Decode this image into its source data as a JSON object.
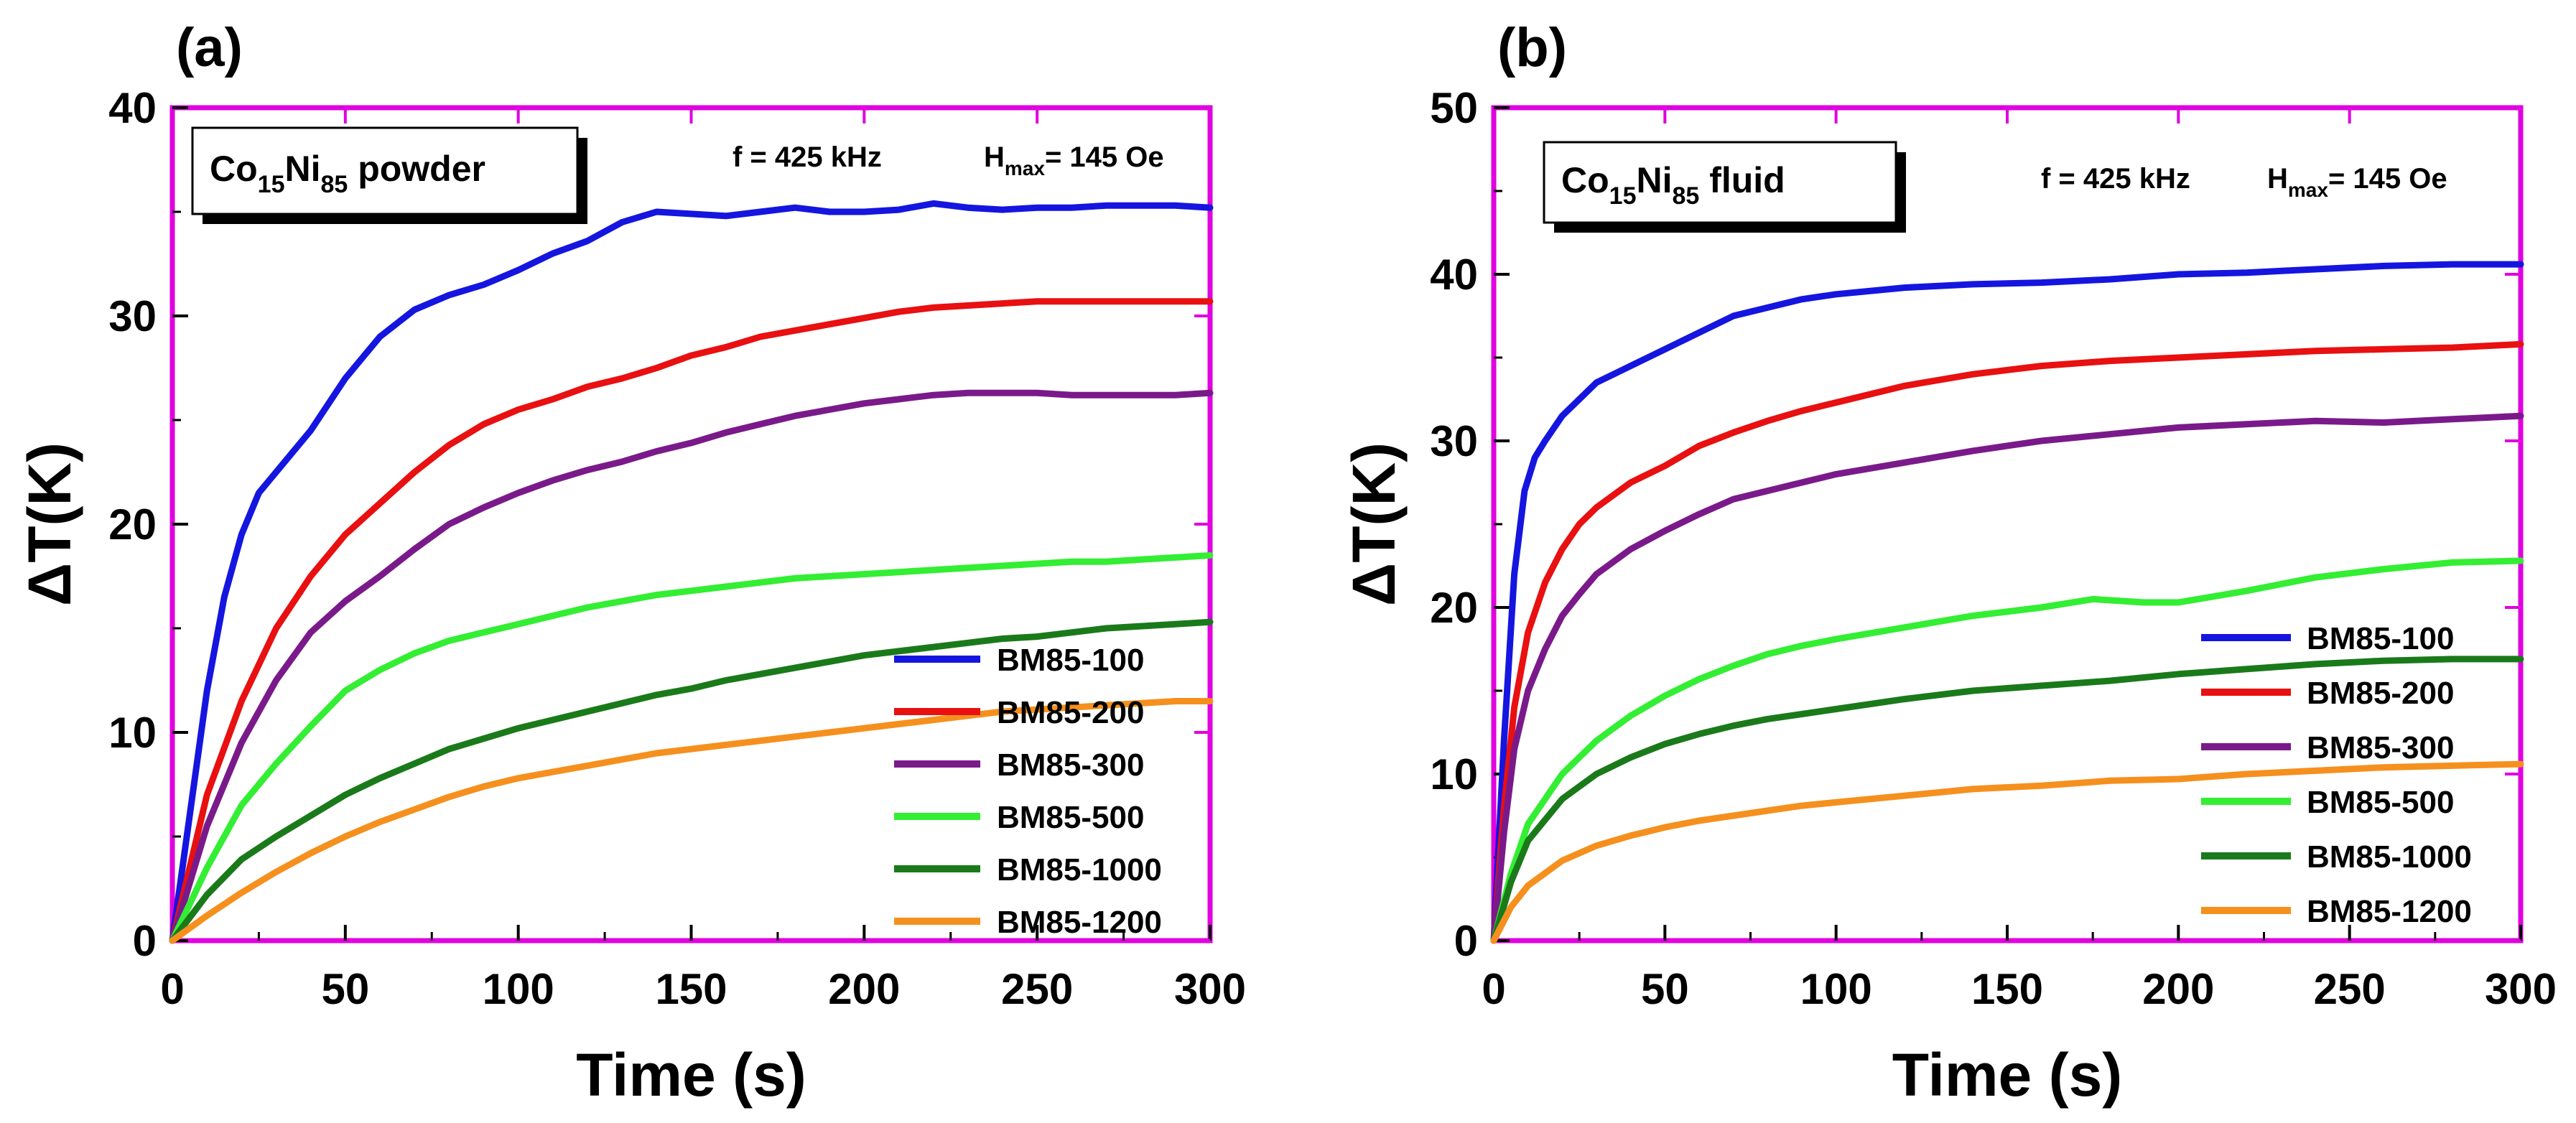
{
  "chart_data": [
    {
      "type": "line",
      "panel_label": "(a)",
      "sample": {
        "prefix": "Co",
        "sub1": "15",
        "mid": "Ni",
        "sub2": "85",
        "suffix": " powder"
      },
      "conditions": {
        "f_text": "f = 425 kHz",
        "h_main": "H",
        "h_sub": "max",
        "h_value": "= 145 Oe"
      },
      "xlabel": "Time (s)",
      "ylabel": "ΔT(K)",
      "xlim": [
        0,
        300
      ],
      "ylim": [
        0,
        40
      ],
      "xticks": [
        "0",
        "50",
        "100",
        "150",
        "200",
        "250",
        "300"
      ],
      "yticks": [
        "0",
        "10",
        "20",
        "30",
        "40"
      ],
      "legend_position": "lower-right",
      "series": [
        {
          "name": "BM85-100",
          "color": "#1515e0",
          "x": [
            0,
            5,
            10,
            15,
            20,
            25,
            30,
            40,
            50,
            60,
            70,
            80,
            90,
            100,
            110,
            120,
            130,
            140,
            150,
            160,
            170,
            180,
            190,
            200,
            210,
            220,
            230,
            240,
            250,
            260,
            270,
            280,
            290,
            300
          ],
          "y": [
            0,
            6,
            12,
            16.5,
            19.5,
            21.5,
            22.5,
            24.5,
            27,
            29,
            30.3,
            31,
            31.5,
            32.2,
            33,
            33.6,
            34.5,
            35,
            34.9,
            34.8,
            35,
            35.2,
            35.0,
            35.0,
            35.1,
            35.4,
            35.2,
            35.1,
            35.2,
            35.2,
            35.3,
            35.3,
            35.3,
            35.2
          ]
        },
        {
          "name": "BM85-200",
          "color": "#e81010",
          "x": [
            0,
            10,
            20,
            30,
            40,
            50,
            60,
            70,
            80,
            90,
            100,
            110,
            120,
            130,
            140,
            150,
            160,
            170,
            180,
            190,
            200,
            210,
            220,
            230,
            240,
            250,
            260,
            270,
            280,
            290,
            300
          ],
          "y": [
            0,
            7,
            11.5,
            15,
            17.5,
            19.5,
            21,
            22.5,
            23.8,
            24.8,
            25.5,
            26,
            26.6,
            27,
            27.5,
            28.1,
            28.5,
            29,
            29.3,
            29.6,
            29.9,
            30.2,
            30.4,
            30.5,
            30.6,
            30.7,
            30.7,
            30.7,
            30.7,
            30.7,
            30.7
          ]
        },
        {
          "name": "BM85-300",
          "color": "#7a1a8a",
          "x": [
            0,
            10,
            20,
            30,
            40,
            50,
            60,
            70,
            80,
            90,
            100,
            110,
            120,
            130,
            140,
            150,
            160,
            170,
            180,
            190,
            200,
            210,
            220,
            230,
            240,
            250,
            260,
            270,
            280,
            290,
            300
          ],
          "y": [
            0,
            5.5,
            9.5,
            12.5,
            14.8,
            16.3,
            17.5,
            18.8,
            20,
            20.8,
            21.5,
            22.1,
            22.6,
            23,
            23.5,
            23.9,
            24.4,
            24.8,
            25.2,
            25.5,
            25.8,
            26,
            26.2,
            26.3,
            26.3,
            26.3,
            26.2,
            26.2,
            26.2,
            26.2,
            26.3
          ]
        },
        {
          "name": "BM85-500",
          "color": "#33ee33",
          "x": [
            0,
            10,
            20,
            30,
            40,
            50,
            60,
            70,
            80,
            90,
            100,
            110,
            120,
            130,
            140,
            150,
            160,
            170,
            180,
            190,
            200,
            210,
            220,
            230,
            240,
            250,
            260,
            270,
            280,
            290,
            300
          ],
          "y": [
            0,
            3.5,
            6.5,
            8.5,
            10.3,
            12,
            13,
            13.8,
            14.4,
            14.8,
            15.2,
            15.6,
            16,
            16.3,
            16.6,
            16.8,
            17,
            17.2,
            17.4,
            17.5,
            17.6,
            17.7,
            17.8,
            17.9,
            18,
            18.1,
            18.2,
            18.2,
            18.3,
            18.4,
            18.5
          ]
        },
        {
          "name": "BM85-1000",
          "color": "#1a7a1a",
          "x": [
            0,
            10,
            20,
            30,
            40,
            50,
            60,
            70,
            80,
            90,
            100,
            110,
            120,
            130,
            140,
            150,
            160,
            170,
            180,
            190,
            200,
            210,
            220,
            230,
            240,
            250,
            260,
            270,
            280,
            290,
            300
          ],
          "y": [
            0,
            2.2,
            3.9,
            5,
            6,
            7,
            7.8,
            8.5,
            9.2,
            9.7,
            10.2,
            10.6,
            11,
            11.4,
            11.8,
            12.1,
            12.5,
            12.8,
            13.1,
            13.4,
            13.7,
            13.9,
            14.1,
            14.3,
            14.5,
            14.6,
            14.8,
            15,
            15.1,
            15.2,
            15.3
          ]
        },
        {
          "name": "BM85-1200",
          "color": "#f5901e",
          "x": [
            0,
            10,
            20,
            30,
            40,
            50,
            60,
            70,
            80,
            90,
            100,
            110,
            120,
            130,
            140,
            150,
            160,
            170,
            180,
            190,
            200,
            210,
            220,
            230,
            240,
            250,
            260,
            270,
            280,
            290,
            300
          ],
          "y": [
            0,
            1.2,
            2.3,
            3.3,
            4.2,
            5,
            5.7,
            6.3,
            6.9,
            7.4,
            7.8,
            8.1,
            8.4,
            8.7,
            9,
            9.2,
            9.4,
            9.6,
            9.8,
            10,
            10.2,
            10.4,
            10.6,
            10.8,
            11,
            11.1,
            11.2,
            11.3,
            11.4,
            11.5,
            11.5
          ]
        }
      ]
    },
    {
      "type": "line",
      "panel_label": "(b)",
      "sample": {
        "prefix": "Co",
        "sub1": "15",
        "mid": "Ni",
        "sub2": "85",
        "suffix": " fluid"
      },
      "conditions": {
        "f_text": "f = 425 kHz",
        "h_main": "H",
        "h_sub": "max",
        "h_value": "= 145 Oe"
      },
      "xlabel": "Time (s)",
      "ylabel": "ΔT(K)",
      "xlim": [
        0,
        300
      ],
      "ylim": [
        0,
        50
      ],
      "xticks": [
        "0",
        "50",
        "100",
        "150",
        "200",
        "250",
        "300"
      ],
      "yticks": [
        "0",
        "10",
        "20",
        "30",
        "40",
        "50"
      ],
      "legend_position": "lower-right",
      "series": [
        {
          "name": "BM85-100",
          "color": "#1515e0",
          "x": [
            0,
            3,
            6,
            9,
            12,
            15,
            20,
            25,
            30,
            40,
            50,
            60,
            70,
            80,
            90,
            100,
            120,
            140,
            160,
            180,
            200,
            220,
            240,
            260,
            280,
            300
          ],
          "y": [
            0,
            12,
            22,
            27,
            29,
            30,
            31.5,
            32.5,
            33.5,
            34.5,
            35.5,
            36.5,
            37.5,
            38,
            38.5,
            38.8,
            39.2,
            39.4,
            39.5,
            39.7,
            40,
            40.1,
            40.3,
            40.5,
            40.6,
            40.6
          ]
        },
        {
          "name": "BM85-200",
          "color": "#e81010",
          "x": [
            0,
            3,
            6,
            10,
            15,
            20,
            25,
            30,
            40,
            50,
            60,
            70,
            80,
            90,
            100,
            120,
            140,
            160,
            180,
            200,
            220,
            240,
            260,
            280,
            300
          ],
          "y": [
            0,
            8,
            14,
            18.5,
            21.5,
            23.5,
            25,
            26,
            27.5,
            28.5,
            29.7,
            30.5,
            31.2,
            31.8,
            32.3,
            33.3,
            34,
            34.5,
            34.8,
            35,
            35.2,
            35.4,
            35.5,
            35.6,
            35.8
          ]
        },
        {
          "name": "BM85-300",
          "color": "#7a1a8a",
          "x": [
            0,
            3,
            6,
            10,
            15,
            20,
            25,
            30,
            40,
            50,
            60,
            70,
            80,
            90,
            100,
            120,
            140,
            160,
            180,
            200,
            220,
            240,
            260,
            280,
            300
          ],
          "y": [
            0,
            6.5,
            11.5,
            15,
            17.5,
            19.5,
            20.8,
            22,
            23.5,
            24.6,
            25.6,
            26.5,
            27,
            27.5,
            28,
            28.7,
            29.4,
            30,
            30.4,
            30.8,
            31,
            31.2,
            31.1,
            31.3,
            31.5
          ]
        },
        {
          "name": "BM85-500",
          "color": "#33ee33",
          "x": [
            0,
            5,
            10,
            20,
            30,
            40,
            50,
            60,
            70,
            80,
            90,
            100,
            120,
            140,
            160,
            175,
            190,
            200,
            220,
            240,
            260,
            280,
            300
          ],
          "y": [
            0,
            4,
            7,
            10,
            12,
            13.5,
            14.7,
            15.7,
            16.5,
            17.2,
            17.7,
            18.1,
            18.8,
            19.5,
            20,
            20.5,
            20.3,
            20.3,
            21,
            21.8,
            22.3,
            22.7,
            22.8
          ]
        },
        {
          "name": "BM85-1000",
          "color": "#1a7a1a",
          "x": [
            0,
            5,
            10,
            20,
            30,
            40,
            50,
            60,
            70,
            80,
            90,
            100,
            120,
            140,
            160,
            180,
            200,
            220,
            240,
            260,
            280,
            300
          ],
          "y": [
            0,
            3.5,
            6,
            8.5,
            10,
            11,
            11.8,
            12.4,
            12.9,
            13.3,
            13.6,
            13.9,
            14.5,
            15,
            15.3,
            15.6,
            16,
            16.3,
            16.6,
            16.8,
            16.9,
            16.9
          ]
        },
        {
          "name": "BM85-1200",
          "color": "#f5901e",
          "x": [
            0,
            5,
            10,
            20,
            30,
            40,
            50,
            60,
            70,
            80,
            90,
            100,
            120,
            140,
            160,
            180,
            200,
            220,
            240,
            260,
            280,
            300
          ],
          "y": [
            0,
            2,
            3.3,
            4.8,
            5.7,
            6.3,
            6.8,
            7.2,
            7.5,
            7.8,
            8.1,
            8.3,
            8.7,
            9.1,
            9.3,
            9.6,
            9.7,
            10,
            10.2,
            10.4,
            10.5,
            10.6
          ]
        }
      ]
    }
  ]
}
